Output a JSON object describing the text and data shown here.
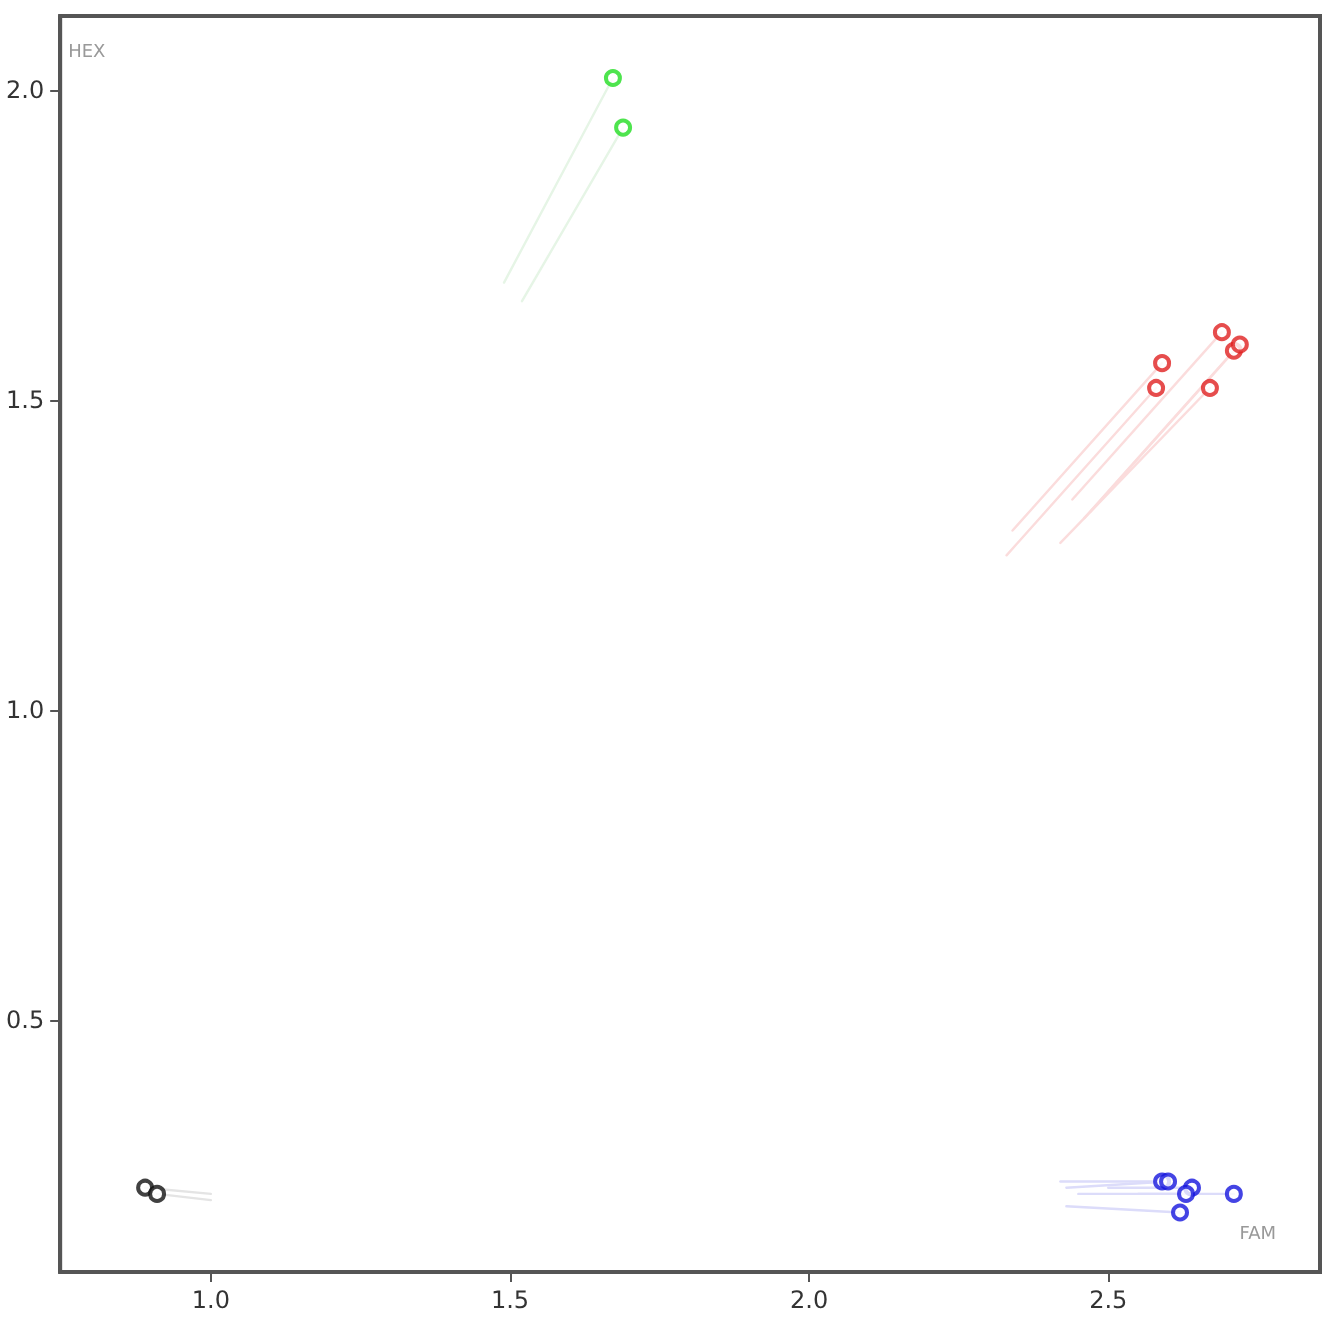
{
  "chart_data": {
    "type": "scatter",
    "xlabel": "FAM",
    "ylabel": "HEX",
    "xlim": [
      0.748,
      2.854
    ],
    "xticks": [
      {
        "value": 1.0,
        "label": "1.0"
      },
      {
        "value": 1.5,
        "label": "1.5"
      },
      {
        "value": 2.0,
        "label": "2.0"
      },
      {
        "value": 2.5,
        "label": "2.5"
      }
    ],
    "ylim": [
      0.094,
      2.12
    ],
    "yticks": [
      {
        "value": 0.5,
        "label": "0.5"
      },
      {
        "value": 1.0,
        "label": "1.0"
      },
      {
        "value": 1.5,
        "label": "1.5"
      },
      {
        "value": 2.0,
        "label": "2.0"
      }
    ],
    "grid": false,
    "marker": "circle",
    "series": [
      {
        "type": "line",
        "marker": "none",
        "color": "#e6f5e6",
        "x": [
          1.49,
          1.672
        ],
        "values": [
          1.69,
          2.02
        ]
      },
      {
        "type": "line",
        "marker": "none",
        "color": "#e6f5e6",
        "x": [
          1.52,
          1.689
        ],
        "values": [
          1.66,
          1.94
        ]
      },
      {
        "type": "line",
        "marker": "none",
        "color": "#fbdcdc",
        "x": [
          2.34,
          2.59
        ],
        "values": [
          1.29,
          1.56
        ]
      },
      {
        "type": "line",
        "marker": "none",
        "color": "#fbdcdc",
        "x": [
          2.33,
          2.58
        ],
        "values": [
          1.25,
          1.52
        ]
      },
      {
        "type": "line",
        "marker": "none",
        "color": "#fbdcdc",
        "x": [
          2.44,
          2.69
        ],
        "values": [
          1.34,
          1.61
        ]
      },
      {
        "type": "line",
        "marker": "none",
        "color": "#fbdcdc",
        "x": [
          2.46,
          2.71
        ],
        "values": [
          1.31,
          1.58
        ]
      },
      {
        "type": "line",
        "marker": "none",
        "color": "#fbdcdc",
        "x": [
          2.47,
          2.72
        ],
        "values": [
          1.32,
          1.59
        ]
      },
      {
        "type": "line",
        "marker": "none",
        "color": "#fbdcdc",
        "x": [
          2.42,
          2.67
        ],
        "values": [
          1.27,
          1.52
        ]
      },
      {
        "type": "line",
        "marker": "none",
        "color": "#dcdcfa",
        "x": [
          2.42,
          2.59
        ],
        "values": [
          0.24,
          0.24
        ]
      },
      {
        "type": "line",
        "marker": "none",
        "color": "#dcdcfa",
        "x": [
          2.43,
          2.6
        ],
        "values": [
          0.23,
          0.24
        ]
      },
      {
        "type": "line",
        "marker": "none",
        "color": "#dcdcfa",
        "x": [
          2.5,
          2.64
        ],
        "values": [
          0.23,
          0.23
        ]
      },
      {
        "type": "line",
        "marker": "none",
        "color": "#dcdcfa",
        "x": [
          2.45,
          2.63
        ],
        "values": [
          0.22,
          0.22
        ]
      },
      {
        "type": "line",
        "marker": "none",
        "color": "#dcdcfa",
        "x": [
          2.43,
          2.62
        ],
        "values": [
          0.2,
          0.19
        ]
      },
      {
        "type": "line",
        "marker": "none",
        "color": "#dcdcfa",
        "x": [
          2.55,
          2.71
        ],
        "values": [
          0.22,
          0.22
        ]
      },
      {
        "type": "line",
        "marker": "none",
        "color": "#e4e4e4",
        "x": [
          1.0,
          0.89
        ],
        "values": [
          0.22,
          0.23
        ]
      },
      {
        "type": "line",
        "marker": "none",
        "color": "#e4e4e4",
        "x": [
          1.0,
          0.91
        ],
        "values": [
          0.21,
          0.22
        ]
      },
      {
        "color": "#22dd22",
        "x": [
          1.672,
          1.689
        ],
        "values": [
          2.02,
          1.94
        ]
      },
      {
        "color": "#e02020",
        "x": [
          2.59,
          2.58,
          2.69,
          2.71,
          2.72,
          2.67
        ],
        "values": [
          1.56,
          1.52,
          1.61,
          1.58,
          1.59,
          1.52
        ]
      },
      {
        "color": "#1515dd",
        "x": [
          2.59,
          2.6,
          2.64,
          2.63,
          2.62,
          2.71
        ],
        "values": [
          0.24,
          0.24,
          0.23,
          0.22,
          0.19,
          0.22
        ]
      },
      {
        "color": "#111111",
        "x": [
          0.89,
          0.91
        ],
        "values": [
          0.23,
          0.22
        ]
      }
    ]
  }
}
